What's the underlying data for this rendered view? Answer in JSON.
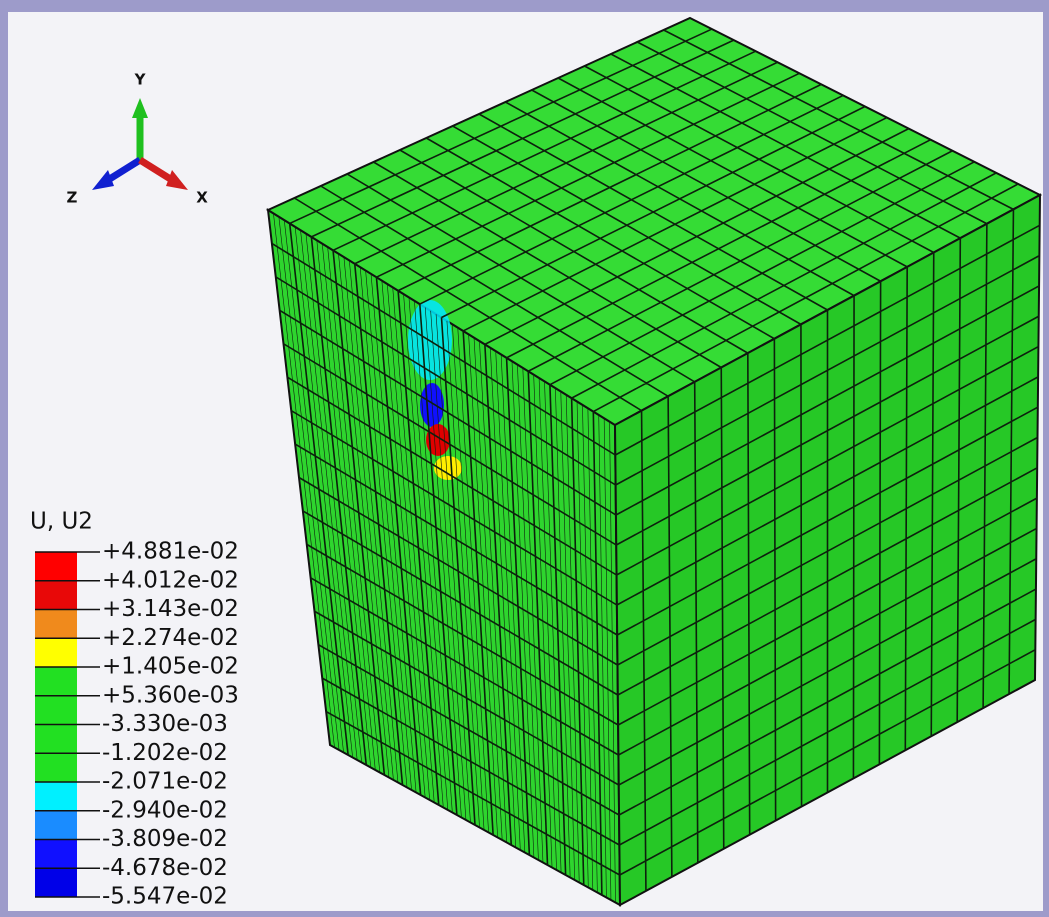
{
  "triad": {
    "y": "Y",
    "z": "Z",
    "x": "X"
  },
  "legend": {
    "title": "U, U2",
    "labels": [
      "+4.881e-02",
      "+4.012e-02",
      "+3.143e-02",
      "+2.274e-02",
      "+1.405e-02",
      "+5.360e-03",
      "-3.330e-03",
      "-1.202e-02",
      "-2.071e-02",
      "-2.940e-02",
      "-3.809e-02",
      "-4.678e-02",
      "-5.547e-02"
    ],
    "colors": [
      "#ff0000",
      "#e80808",
      "#f08a1c",
      "#ffff00",
      "#22e022",
      "#22e022",
      "#22e022",
      "#22e022",
      "#00f0ff",
      "#1a8cff",
      "#1010ff",
      "#0000e8"
    ]
  }
}
